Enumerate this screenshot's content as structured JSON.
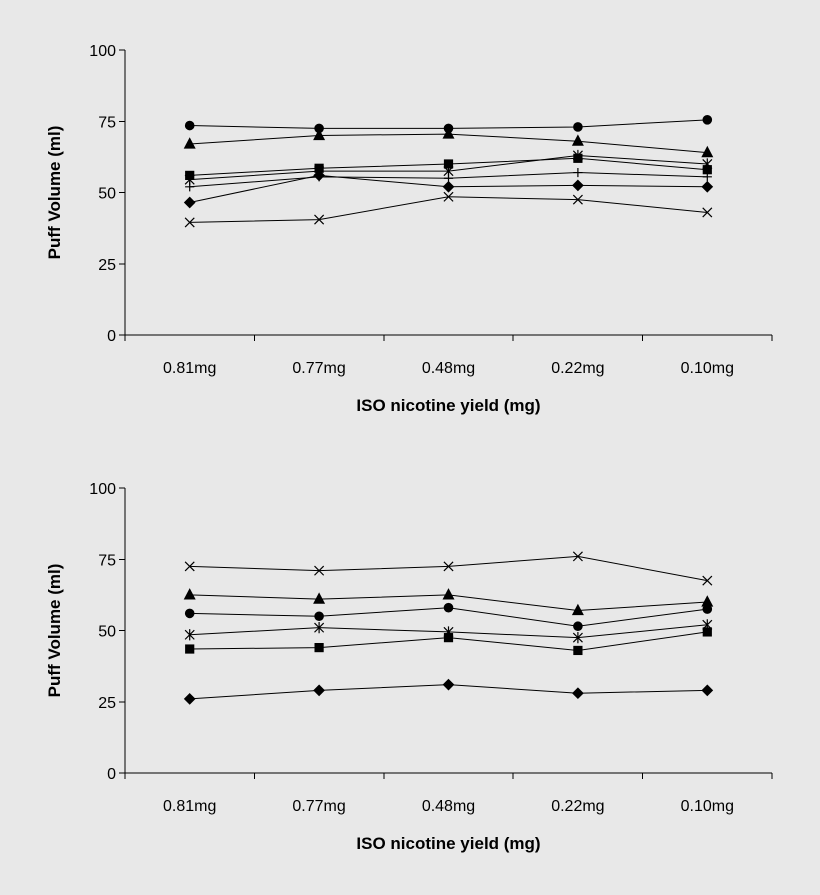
{
  "page": {
    "background": "#e8e8e8",
    "ink": "#000000"
  },
  "chart_data": [
    {
      "type": "line",
      "title": "",
      "xlabel": "ISO nicotine yield (mg)",
      "ylabel": "Puff Volume (ml)",
      "ylim": [
        0,
        100
      ],
      "yticks": [
        "0",
        "25",
        "50",
        "75",
        "100"
      ],
      "categories": [
        "0.81mg",
        "0.77mg",
        "0.48mg",
        "0.22mg",
        "0.10mg"
      ],
      "legend": "none",
      "grid": false,
      "series": [
        {
          "marker": "circle",
          "values": [
            73.5,
            72.5,
            72.5,
            73,
            75.5
          ]
        },
        {
          "marker": "triangle",
          "values": [
            67,
            70,
            70.5,
            68,
            64
          ]
        },
        {
          "marker": "square",
          "values": [
            56,
            58.5,
            60,
            62,
            58
          ]
        },
        {
          "marker": "asterisk",
          "values": [
            54.5,
            57.5,
            57.5,
            63,
            60
          ]
        },
        {
          "marker": "plus",
          "values": [
            52,
            55.5,
            55,
            57,
            55.5
          ]
        },
        {
          "marker": "diamond",
          "values": [
            46.5,
            56,
            52,
            52.5,
            52
          ]
        },
        {
          "marker": "x",
          "values": [
            39.5,
            40.5,
            48.5,
            47.5,
            43
          ]
        }
      ]
    },
    {
      "type": "line",
      "title": "",
      "xlabel": "ISO nicotine yield (mg)",
      "ylabel": "Puff Volume (ml)",
      "ylim": [
        0,
        100
      ],
      "yticks": [
        "0",
        "25",
        "50",
        "75",
        "100"
      ],
      "categories": [
        "0.81mg",
        "0.77mg",
        "0.48mg",
        "0.22mg",
        "0.10mg"
      ],
      "legend": "none",
      "grid": false,
      "series": [
        {
          "marker": "x",
          "values": [
            72.5,
            71,
            72.5,
            76,
            67.5
          ]
        },
        {
          "marker": "triangle",
          "values": [
            62.5,
            61,
            62.5,
            57,
            60
          ]
        },
        {
          "marker": "circle",
          "values": [
            56,
            55,
            58,
            51.5,
            57.5
          ]
        },
        {
          "marker": "asterisk",
          "values": [
            48.5,
            51,
            49.5,
            47.5,
            52
          ]
        },
        {
          "marker": "square",
          "values": [
            43.5,
            44,
            47.5,
            43,
            49.5
          ]
        },
        {
          "marker": "diamond",
          "values": [
            26,
            29,
            31,
            28,
            29
          ]
        }
      ]
    }
  ]
}
